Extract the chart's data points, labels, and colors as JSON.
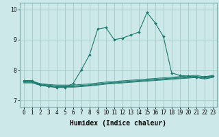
{
  "xlabel": "Humidex (Indice chaleur)",
  "xlim": [
    -0.5,
    23.5
  ],
  "ylim": [
    6.78,
    10.22
  ],
  "bg_color": "#cce8e8",
  "line_color": "#1a7a6e",
  "grid_color": "#99c4c4",
  "spine_color": "#7aacac",
  "main_x": [
    0,
    1,
    2,
    3,
    4,
    5,
    6,
    7,
    8,
    9,
    10,
    11,
    12,
    13,
    14,
    15,
    16,
    17,
    18,
    19,
    20,
    21,
    22,
    23
  ],
  "main_y": [
    7.65,
    7.65,
    7.5,
    7.45,
    7.42,
    7.42,
    7.55,
    8.0,
    8.5,
    9.35,
    9.4,
    9.0,
    9.05,
    9.15,
    9.25,
    9.9,
    9.55,
    9.1,
    7.9,
    7.82,
    7.8,
    7.75,
    7.78,
    7.8
  ],
  "flat1_x": [
    0,
    1,
    2,
    3,
    4,
    5,
    6,
    7,
    8,
    9,
    10,
    11,
    12,
    13,
    14,
    15,
    16,
    17,
    18,
    19,
    20,
    21,
    22,
    23
  ],
  "flat1_y": [
    7.63,
    7.63,
    7.55,
    7.52,
    7.5,
    7.5,
    7.5,
    7.52,
    7.54,
    7.57,
    7.6,
    7.62,
    7.64,
    7.66,
    7.68,
    7.7,
    7.72,
    7.74,
    7.76,
    7.78,
    7.8,
    7.82,
    7.77,
    7.82
  ],
  "flat2_x": [
    0,
    1,
    2,
    3,
    4,
    5,
    6,
    7,
    8,
    9,
    10,
    11,
    12,
    13,
    14,
    15,
    16,
    17,
    18,
    19,
    20,
    21,
    22,
    23
  ],
  "flat2_y": [
    7.61,
    7.61,
    7.53,
    7.5,
    7.47,
    7.47,
    7.47,
    7.49,
    7.51,
    7.54,
    7.57,
    7.59,
    7.61,
    7.63,
    7.65,
    7.67,
    7.69,
    7.71,
    7.73,
    7.75,
    7.77,
    7.79,
    7.74,
    7.79
  ],
  "flat3_x": [
    0,
    1,
    2,
    3,
    4,
    5,
    6,
    7,
    8,
    9,
    10,
    11,
    12,
    13,
    14,
    15,
    16,
    17,
    18,
    19,
    20,
    21,
    22,
    23
  ],
  "flat3_y": [
    7.59,
    7.59,
    7.51,
    7.48,
    7.45,
    7.45,
    7.45,
    7.47,
    7.49,
    7.52,
    7.55,
    7.57,
    7.59,
    7.61,
    7.63,
    7.65,
    7.67,
    7.69,
    7.71,
    7.73,
    7.75,
    7.77,
    7.72,
    7.77
  ],
  "flat4_x": [
    0,
    1,
    2,
    3,
    4,
    5,
    6,
    7,
    8,
    9,
    10,
    11,
    12,
    13,
    14,
    15,
    16,
    17,
    18,
    19,
    20,
    21,
    22,
    23
  ],
  "flat4_y": [
    7.57,
    7.57,
    7.49,
    7.46,
    7.43,
    7.43,
    7.43,
    7.45,
    7.47,
    7.5,
    7.53,
    7.55,
    7.57,
    7.59,
    7.61,
    7.63,
    7.65,
    7.67,
    7.69,
    7.71,
    7.73,
    7.75,
    7.7,
    7.75
  ],
  "xticks": [
    0,
    1,
    2,
    3,
    4,
    5,
    6,
    7,
    8,
    9,
    10,
    11,
    12,
    13,
    14,
    15,
    16,
    17,
    18,
    19,
    20,
    21,
    22,
    23
  ],
  "yticks": [
    7,
    8,
    9,
    10
  ],
  "tick_fontsize": 5.5,
  "label_fontsize": 7.0
}
